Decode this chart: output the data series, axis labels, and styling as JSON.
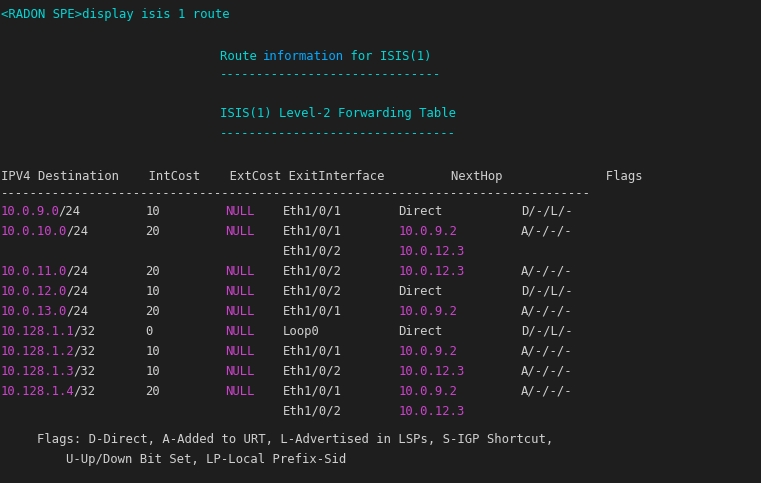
{
  "bg_color": "#1e1e1e",
  "color_cyan": "#00d7d7",
  "color_magenta": "#cc44cc",
  "color_pink": "#00aaff",
  "color_white": "#d0d0d0",
  "color_null": "#cc44cc",
  "color_nexthop": "#cc44cc",
  "color_dest": "#cc44cc",
  "prompt_line": "<RADON SPE>display isis 1 route",
  "title_part1": "Route ",
  "title_highlight": "information",
  "title_part2": " for ISIS(1)",
  "separator1": "------------------------------",
  "subtitle": "ISIS(1) Level-2 Forwarding Table",
  "separator2": "--------------------------------",
  "header_cols": [
    "IPV4 Destination    IntCost    ExtCost ExitInterface         NextHop              Flags"
  ],
  "header_sep": "--------------------------------------------------------------------------------",
  "rows": [
    {
      "dest": "10.0.9.0",
      "prefix": "/24",
      "cost": "10",
      "extcost": "NULL",
      "exit1": "Eth1/0/1",
      "next1": "Direct",
      "flags1": "D/-/L/-",
      "exit2": null,
      "next2": null
    },
    {
      "dest": "10.0.10.0",
      "prefix": "/24",
      "cost": "20",
      "extcost": "NULL",
      "exit1": "Eth1/0/1",
      "next1": "10.0.9.2",
      "flags1": "A/-/-/-",
      "exit2": "Eth1/0/2",
      "next2": "10.0.12.3"
    },
    {
      "dest": "10.0.11.0",
      "prefix": "/24",
      "cost": "20",
      "extcost": "NULL",
      "exit1": "Eth1/0/2",
      "next1": "10.0.12.3",
      "flags1": "A/-/-/-",
      "exit2": null,
      "next2": null
    },
    {
      "dest": "10.0.12.0",
      "prefix": "/24",
      "cost": "10",
      "extcost": "NULL",
      "exit1": "Eth1/0/2",
      "next1": "Direct",
      "flags1": "D/-/L/-",
      "exit2": null,
      "next2": null
    },
    {
      "dest": "10.0.13.0",
      "prefix": "/24",
      "cost": "20",
      "extcost": "NULL",
      "exit1": "Eth1/0/1",
      "next1": "10.0.9.2",
      "flags1": "A/-/-/-",
      "exit2": null,
      "next2": null
    },
    {
      "dest": "10.128.1.1",
      "prefix": "/32",
      "cost": "0",
      "extcost": "NULL",
      "exit1": "Loop0",
      "next1": "Direct",
      "flags1": "D/-/L/-",
      "exit2": null,
      "next2": null
    },
    {
      "dest": "10.128.1.2",
      "prefix": "/32",
      "cost": "10",
      "extcost": "NULL",
      "exit1": "Eth1/0/1",
      "next1": "10.0.9.2",
      "flags1": "A/-/-/-",
      "exit2": null,
      "next2": null
    },
    {
      "dest": "10.128.1.3",
      "prefix": "/32",
      "cost": "10",
      "extcost": "NULL",
      "exit1": "Eth1/0/2",
      "next1": "10.0.12.3",
      "flags1": "A/-/-/-",
      "exit2": null,
      "next2": null
    },
    {
      "dest": "10.128.1.4",
      "prefix": "/32",
      "cost": "20",
      "extcost": "NULL",
      "exit1": "Eth1/0/1",
      "next1": "10.0.9.2",
      "flags1": "A/-/-/-",
      "exit2": "Eth1/0/2",
      "next2": "10.0.12.3"
    }
  ],
  "footer1": "Flags: D-Direct, A-Added to URT, L-Advertised in LSPs, S-IGP Shortcut,",
  "footer2": "U-Up/Down Bit Set, LP-Local Prefix-Sid"
}
